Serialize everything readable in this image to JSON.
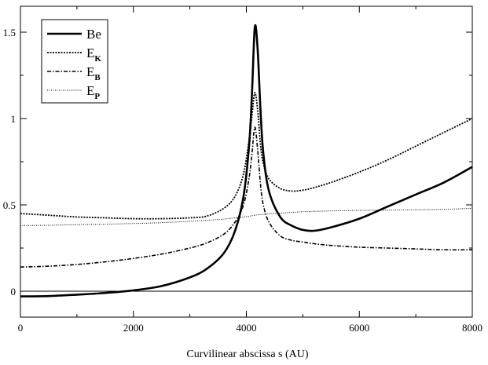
{
  "chart_data": {
    "type": "line",
    "title": "",
    "xlabel": "Curvilinear abscissa s (AU)",
    "ylabel": "",
    "xlim": [
      0,
      8000
    ],
    "ylim": [
      -0.15,
      1.65
    ],
    "x_ticks": [
      0,
      2000,
      4000,
      6000,
      8000
    ],
    "x_tick_labels": [
      "0",
      "2000",
      "4000",
      "6000",
      "8000"
    ],
    "y_ticks": [
      0,
      0.5,
      1,
      1.5
    ],
    "y_tick_labels": [
      "0",
      "0.5",
      "1",
      "1.5"
    ],
    "zero_line": true,
    "grid": false,
    "legend_position": "top-left",
    "series": [
      {
        "name": "Be",
        "label_main": "Be",
        "label_sub": "",
        "style": "solid",
        "color": "#000000",
        "x": [
          0,
          500,
          1000,
          1500,
          2000,
          2500,
          3000,
          3300,
          3600,
          3800,
          3950,
          4050,
          4100,
          4150,
          4200,
          4250,
          4300,
          4400,
          4600,
          4800,
          5000,
          5200,
          5500,
          6000,
          6500,
          7000,
          7500,
          8000
        ],
        "y": [
          -0.03,
          -0.028,
          -0.02,
          -0.01,
          0.005,
          0.03,
          0.08,
          0.13,
          0.22,
          0.35,
          0.55,
          0.85,
          1.15,
          1.53,
          1.4,
          1.05,
          0.8,
          0.58,
          0.43,
          0.38,
          0.355,
          0.35,
          0.37,
          0.42,
          0.49,
          0.56,
          0.63,
          0.72
        ]
      },
      {
        "name": "E_K",
        "label_main": "E",
        "label_sub": "K",
        "style": "dotted",
        "color": "#000000",
        "x": [
          0,
          500,
          1000,
          1500,
          2000,
          2500,
          3000,
          3300,
          3600,
          3800,
          3950,
          4050,
          4100,
          4150,
          4200,
          4250,
          4300,
          4400,
          4600,
          4800,
          5000,
          5200,
          5500,
          6000,
          6500,
          7000,
          7500,
          8000
        ],
        "y": [
          0.45,
          0.44,
          0.43,
          0.425,
          0.42,
          0.42,
          0.425,
          0.435,
          0.48,
          0.55,
          0.68,
          0.88,
          1.02,
          1.15,
          1.05,
          0.85,
          0.74,
          0.65,
          0.595,
          0.58,
          0.585,
          0.6,
          0.63,
          0.69,
          0.76,
          0.84,
          0.92,
          1.0
        ]
      },
      {
        "name": "E_B",
        "label_main": "E",
        "label_sub": "B",
        "style": "dashdot",
        "color": "#000000",
        "x": [
          0,
          500,
          1000,
          1500,
          2000,
          2500,
          3000,
          3300,
          3600,
          3800,
          3950,
          4050,
          4100,
          4150,
          4200,
          4250,
          4300,
          4400,
          4600,
          4800,
          5000,
          5200,
          5500,
          6000,
          6500,
          7000,
          7500,
          8000
        ],
        "y": [
          0.14,
          0.145,
          0.155,
          0.17,
          0.19,
          0.215,
          0.25,
          0.28,
          0.33,
          0.4,
          0.5,
          0.66,
          0.8,
          0.95,
          0.82,
          0.62,
          0.5,
          0.4,
          0.32,
          0.295,
          0.285,
          0.275,
          0.265,
          0.255,
          0.25,
          0.245,
          0.24,
          0.24
        ]
      },
      {
        "name": "E_P",
        "label_main": "E",
        "label_sub": "P",
        "style": "finedot",
        "color": "#000000",
        "x": [
          0,
          500,
          1000,
          1500,
          2000,
          2500,
          3000,
          3500,
          3800,
          4000,
          4150,
          4300,
          4500,
          5000,
          5500,
          6000,
          6500,
          7000,
          7500,
          8000
        ],
        "y": [
          0.38,
          0.382,
          0.385,
          0.388,
          0.392,
          0.397,
          0.405,
          0.415,
          0.425,
          0.432,
          0.44,
          0.445,
          0.45,
          0.46,
          0.465,
          0.468,
          0.47,
          0.472,
          0.474,
          0.48
        ]
      }
    ]
  }
}
